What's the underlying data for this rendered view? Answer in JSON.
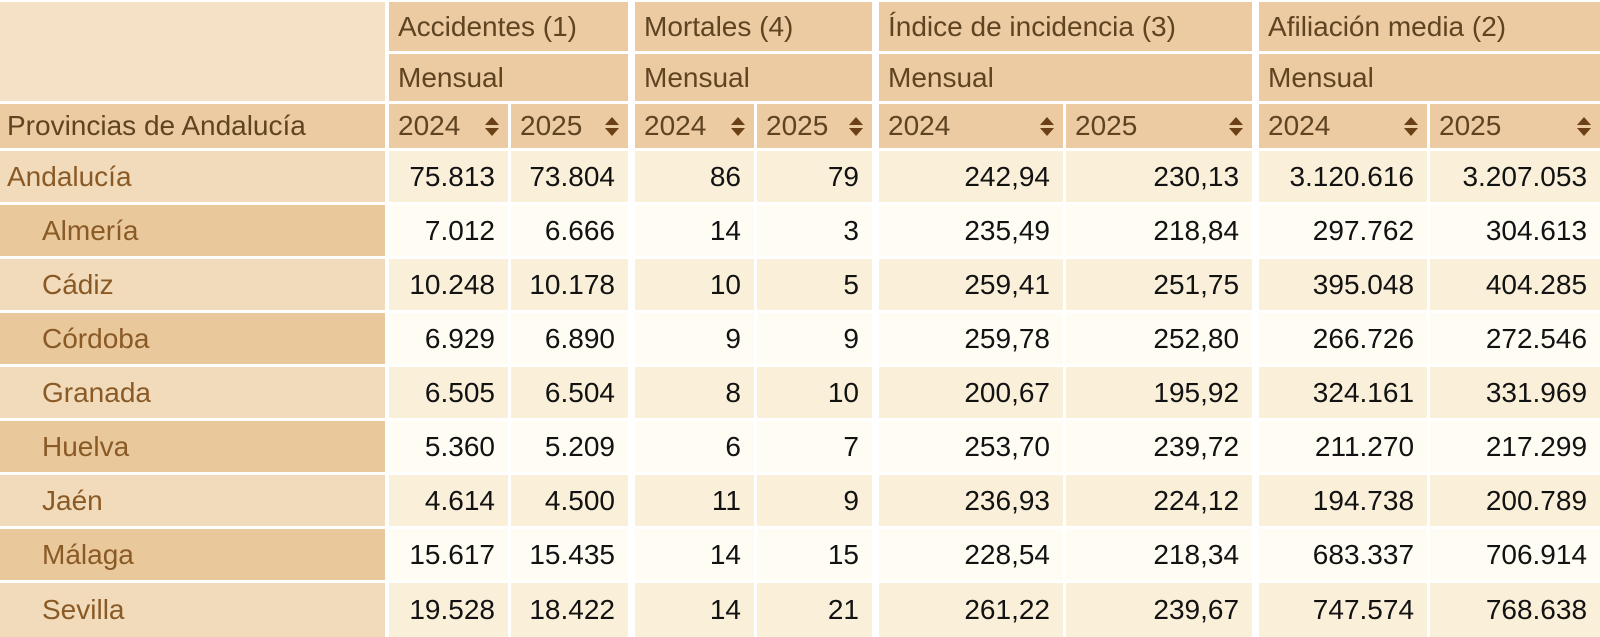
{
  "table": {
    "row_header": "Provincias de Andalucía",
    "groups": [
      {
        "label": "Accidentes (1)",
        "period": "Mensual"
      },
      {
        "label": "Mortales (4)",
        "period": "Mensual"
      },
      {
        "label": "Índice de incidencia (3)",
        "period": "Mensual"
      },
      {
        "label": "Afiliación media (2)",
        "period": "Mensual"
      }
    ],
    "year_headers": [
      {
        "label": "2024",
        "group": "Accidentes"
      },
      {
        "label": "2025",
        "group": "Accidentes"
      },
      {
        "label": "2024",
        "group": "Mortales"
      },
      {
        "label": "2025",
        "group": "Mortales"
      },
      {
        "label": "2024",
        "group": "Indice de incidencia"
      },
      {
        "label": "2025",
        "group": "Indice de incidencia"
      },
      {
        "label": "2024",
        "group": "Afiliacion media"
      },
      {
        "label": "2025",
        "group": "Afiliacion media"
      }
    ],
    "rows": [
      {
        "label": "Andalucía",
        "indent": false,
        "values": [
          "75.813",
          "73.804",
          "86",
          "79",
          "242,94",
          "230,13",
          "3.120.616",
          "3.207.053"
        ]
      },
      {
        "label": "Almería",
        "indent": true,
        "values": [
          "7.012",
          "6.666",
          "14",
          "3",
          "235,49",
          "218,84",
          "297.762",
          "304.613"
        ]
      },
      {
        "label": "Cádiz",
        "indent": true,
        "values": [
          "10.248",
          "10.178",
          "10",
          "5",
          "259,41",
          "251,75",
          "395.048",
          "404.285"
        ]
      },
      {
        "label": "Córdoba",
        "indent": true,
        "values": [
          "6.929",
          "6.890",
          "9",
          "9",
          "259,78",
          "252,80",
          "266.726",
          "272.546"
        ]
      },
      {
        "label": "Granada",
        "indent": true,
        "values": [
          "6.505",
          "6.504",
          "8",
          "10",
          "200,67",
          "195,92",
          "324.161",
          "331.969"
        ]
      },
      {
        "label": "Huelva",
        "indent": true,
        "values": [
          "5.360",
          "5.209",
          "6",
          "7",
          "253,70",
          "239,72",
          "211.270",
          "217.299"
        ]
      },
      {
        "label": "Jaén",
        "indent": true,
        "values": [
          "4.614",
          "4.500",
          "11",
          "9",
          "236,93",
          "224,12",
          "194.738",
          "200.789"
        ]
      },
      {
        "label": "Málaga",
        "indent": true,
        "values": [
          "15.617",
          "15.435",
          "14",
          "15",
          "228,54",
          "218,34",
          "683.337",
          "706.914"
        ]
      },
      {
        "label": "Sevilla",
        "indent": true,
        "values": [
          "19.528",
          "18.422",
          "14",
          "21",
          "261,22",
          "239,67",
          "747.574",
          "768.638"
        ]
      }
    ]
  },
  "icons": {
    "sort": "sort-up-down-icon"
  },
  "colors": {
    "header_bg": "#eccaa2",
    "corner_bg": "#f4e1c6",
    "label_odd": "#f2dbba",
    "label_even": "#e9c89c",
    "data_odd": "#faf0da",
    "data_even": "#fffdf3",
    "header_text": "#5f4422",
    "label_text": "#8a5a26",
    "value_text": "#121212",
    "grid": "#ffffff",
    "sort_icon": "#6b4016"
  }
}
